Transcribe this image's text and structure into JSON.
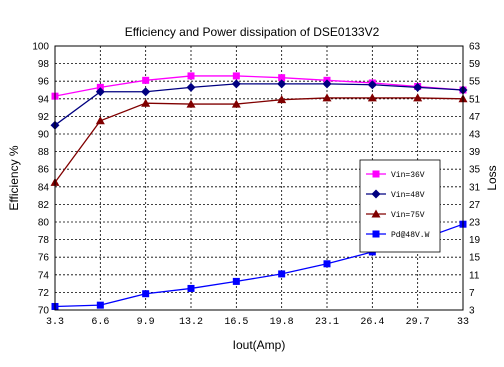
{
  "chart_data": {
    "type": "line",
    "title": "Efficiency and Power dissipation of  DSE0133V2",
    "xlabel": "Iout(Amp)",
    "ylabel_left": "Efficiency %",
    "ylabel_right": "Loss",
    "x": [
      3.3,
      6.6,
      9.9,
      13.2,
      16.5,
      19.8,
      23.1,
      26.4,
      29.7,
      33
    ],
    "x_tick_labels": [
      "3.3",
      "6.6",
      "9.9",
      "13.2",
      "16.5",
      "19.8",
      "23.1",
      "26.4",
      "29.7",
      "33"
    ],
    "ylim_left": [
      70,
      100
    ],
    "y_left_ticks": [
      "70",
      "72",
      "74",
      "76",
      "78",
      "80",
      "82",
      "84",
      "86",
      "88",
      "90",
      "92",
      "94",
      "96",
      "98",
      "100"
    ],
    "ylim_right": [
      3,
      63
    ],
    "y_right_ticks": [
      "3",
      "7",
      "11",
      "15",
      "19",
      "23",
      "27",
      "31",
      "35",
      "39",
      "43",
      "47",
      "51",
      "55",
      "59",
      "63"
    ],
    "grid": true,
    "legend_position": "right",
    "series": [
      {
        "name": "Vin=36V",
        "axis": "left",
        "color": "#ff00ff",
        "marker": "square",
        "values": [
          94.3,
          95.3,
          96.1,
          96.6,
          96.6,
          96.4,
          96.1,
          95.8,
          95.4,
          95.0
        ]
      },
      {
        "name": "Vin=48V",
        "axis": "left",
        "color": "#000080",
        "marker": "diamond",
        "values": [
          91.0,
          94.8,
          94.8,
          95.3,
          95.7,
          95.7,
          95.7,
          95.6,
          95.3,
          95.0
        ]
      },
      {
        "name": "Vin=75V",
        "axis": "left",
        "color": "#800000",
        "marker": "triangle",
        "values": [
          84.5,
          91.5,
          93.5,
          93.4,
          93.4,
          93.9,
          94.1,
          94.1,
          94.1,
          94.0
        ]
      },
      {
        "name": "Pd@48V.W",
        "axis": "right",
        "color": "#0000ff",
        "marker": "square",
        "values": [
          3.8,
          4.1,
          6.7,
          7.9,
          9.5,
          11.2,
          13.5,
          16.2,
          18.8,
          22.5
        ]
      }
    ]
  }
}
